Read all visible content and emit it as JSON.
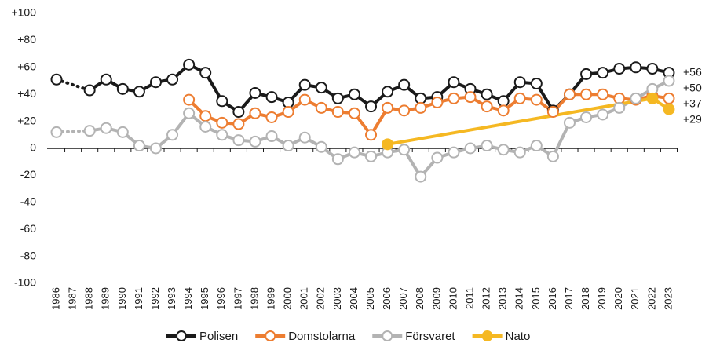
{
  "chart_data": {
    "type": "line",
    "categories": [
      "1986",
      "1987",
      "1988",
      "1989",
      "1990",
      "1991",
      "1992",
      "1993",
      "1994",
      "1995",
      "1996",
      "1997",
      "1998",
      "1999",
      "2000",
      "2001",
      "2002",
      "2003",
      "2004",
      "2005",
      "2006",
      "2007",
      "2008",
      "2009",
      "2010",
      "2011",
      "2012",
      "2013",
      "2014",
      "2015",
      "2016",
      "2017",
      "2018",
      "2019",
      "2020",
      "2021",
      "2022",
      "2023"
    ],
    "ylim": [
      -100,
      100
    ],
    "yticks": [
      {
        "value": 100,
        "label": "+100"
      },
      {
        "value": 80,
        "label": "+80"
      },
      {
        "value": 60,
        "label": "+60"
      },
      {
        "value": 40,
        "label": "+40"
      },
      {
        "value": 20,
        "label": "+20"
      },
      0,
      -20,
      -40,
      -60,
      -80,
      -100
    ],
    "series": [
      {
        "name": "Polisen",
        "color": "#1a1a1a",
        "values": [
          51,
          null,
          43,
          51,
          44,
          42,
          49,
          51,
          62,
          56,
          35,
          27,
          41,
          38,
          34,
          47,
          45,
          37,
          40,
          31,
          42,
          47,
          37,
          38,
          49,
          44,
          40,
          35,
          49,
          48,
          28,
          40,
          55,
          56,
          59,
          60,
          59,
          56
        ],
        "value_labels": [
          null,
          null,
          null,
          null,
          null,
          null,
          null,
          null,
          null,
          null,
          null,
          null,
          null,
          null,
          null,
          null,
          null,
          null,
          null,
          null,
          null,
          null,
          null,
          null,
          null,
          null,
          null,
          null,
          null,
          null,
          null,
          null,
          null,
          null,
          null,
          null,
          null,
          "+56"
        ]
      },
      {
        "name": "Domstolarna",
        "color": "#ed7d31",
        "values": [
          null,
          null,
          null,
          null,
          null,
          null,
          null,
          null,
          36,
          24,
          19,
          18,
          26,
          23,
          27,
          36,
          30,
          27,
          26,
          10,
          30,
          28,
          30,
          34,
          37,
          38,
          31,
          28,
          37,
          36,
          27,
          40,
          40,
          40,
          37,
          36,
          39,
          37
        ],
        "value_labels": [
          null,
          null,
          null,
          null,
          null,
          null,
          null,
          null,
          null,
          null,
          null,
          null,
          null,
          null,
          null,
          null,
          null,
          null,
          null,
          null,
          null,
          null,
          null,
          null,
          null,
          null,
          null,
          null,
          null,
          null,
          null,
          null,
          null,
          null,
          null,
          null,
          null,
          "+37"
        ]
      },
      {
        "name": "Försvaret",
        "color": "#b3b3b3",
        "values": [
          12,
          null,
          13,
          15,
          12,
          2,
          0,
          10,
          26,
          16,
          10,
          6,
          5,
          9,
          2,
          8,
          1,
          -8,
          -3,
          -6,
          -3,
          -1,
          -21,
          -7,
          -3,
          0,
          2,
          -1,
          -3,
          2,
          -6,
          19,
          23,
          25,
          30,
          37,
          44,
          50
        ],
        "value_labels": [
          null,
          null,
          null,
          null,
          null,
          null,
          null,
          null,
          null,
          null,
          null,
          null,
          null,
          null,
          null,
          null,
          null,
          null,
          null,
          null,
          null,
          null,
          null,
          null,
          null,
          null,
          null,
          null,
          null,
          null,
          null,
          null,
          null,
          null,
          null,
          null,
          null,
          "+50"
        ]
      },
      {
        "name": "Nato",
        "color": "#f5b822",
        "filled": true,
        "x": [
          "2006",
          "2022",
          "2023"
        ],
        "values": [
          3,
          37,
          29
        ],
        "value_labels": [
          null,
          null,
          "+29"
        ]
      }
    ]
  }
}
